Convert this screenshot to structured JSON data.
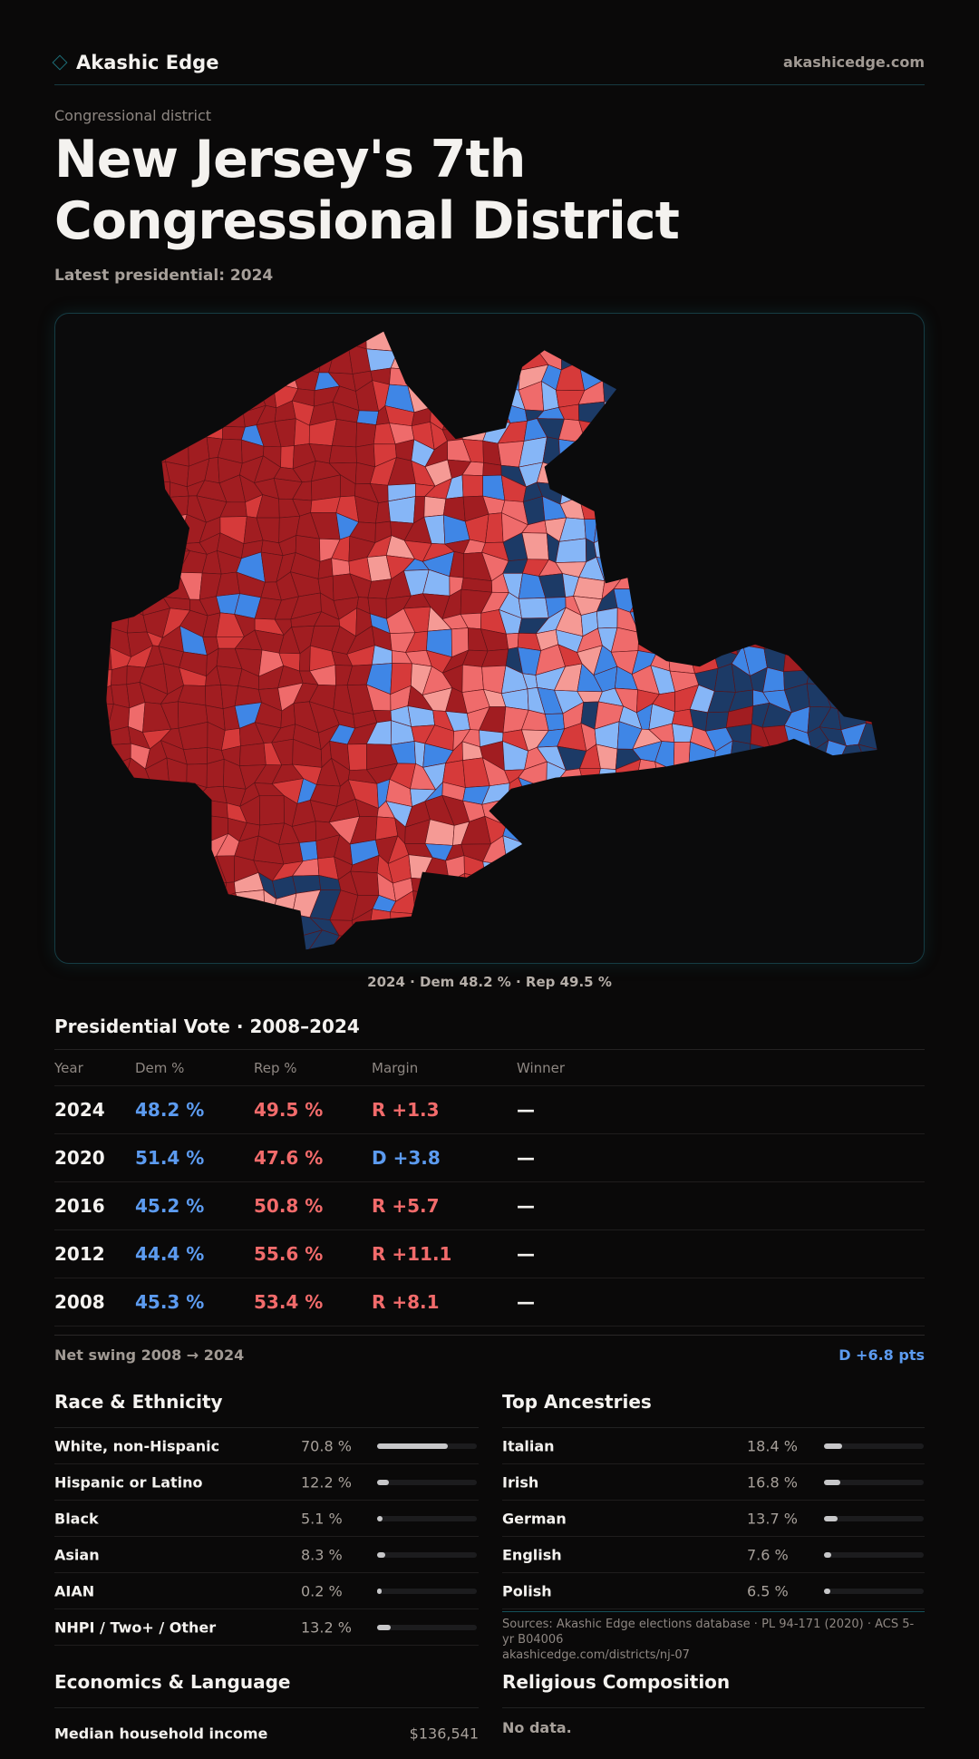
{
  "header": {
    "brand": "Akashic Edge",
    "brand_icon": "diamond-icon",
    "site": "akashicedge.com"
  },
  "kicker": "Congressional district",
  "title": "New Jersey's 7th Congressional District",
  "latest": "Latest presidential: 2024",
  "map": {
    "caption": "2024 · Dem 48.2 % · Rep 49.5 %",
    "colors": {
      "safe_r": "#a11d21",
      "lean_r": "#d63a3a",
      "tilt_r": "#ef6b6b",
      "weak_r": "#f59a95",
      "weak_d": "#86b6f7",
      "lean_d": "#3f86e6",
      "safe_d": "#1c3a66"
    }
  },
  "presidential": {
    "heading": "Presidential Vote · 2008–2024",
    "columns": [
      "Year",
      "Dem %",
      "Rep %",
      "Margin",
      "Winner"
    ],
    "rows": [
      {
        "year": "2024",
        "dem": "48.2 %",
        "rep": "49.5 %",
        "margin": "R +1.3",
        "party": "R",
        "winner": "—"
      },
      {
        "year": "2020",
        "dem": "51.4 %",
        "rep": "47.6 %",
        "margin": "D +3.8",
        "party": "D",
        "winner": "—"
      },
      {
        "year": "2016",
        "dem": "45.2 %",
        "rep": "50.8 %",
        "margin": "R +5.7",
        "party": "R",
        "winner": "—"
      },
      {
        "year": "2012",
        "dem": "44.4 %",
        "rep": "55.6 %",
        "margin": "R +11.1",
        "party": "R",
        "winner": "—"
      },
      {
        "year": "2008",
        "dem": "45.3 %",
        "rep": "53.4 %",
        "margin": "R +8.1",
        "party": "R",
        "winner": "—"
      }
    ],
    "swing_label": "Net swing 2008 → 2024",
    "swing_value": "D +6.8 pts"
  },
  "race": {
    "heading": "Race & Ethnicity",
    "rows": [
      {
        "label": "White, non-Hispanic",
        "value": "70.8 %",
        "pct": 70.8
      },
      {
        "label": "Hispanic or Latino",
        "value": "12.2 %",
        "pct": 12.2
      },
      {
        "label": "Black",
        "value": "5.1 %",
        "pct": 5.1
      },
      {
        "label": "Asian",
        "value": "8.3 %",
        "pct": 8.3
      },
      {
        "label": "AIAN",
        "value": "0.2 %",
        "pct": 0.2
      },
      {
        "label": "NHPI / Two+ / Other",
        "value": "13.2 %",
        "pct": 13.2
      }
    ]
  },
  "ancestry": {
    "heading": "Top Ancestries",
    "rows": [
      {
        "label": "Italian",
        "value": "18.4 %",
        "pct": 18.4
      },
      {
        "label": "Irish",
        "value": "16.8 %",
        "pct": 16.8
      },
      {
        "label": "German",
        "value": "13.7 %",
        "pct": 13.7
      },
      {
        "label": "English",
        "value": "7.6 %",
        "pct": 7.6
      },
      {
        "label": "Polish",
        "value": "6.5 %",
        "pct": 6.5
      }
    ]
  },
  "economics": {
    "heading": "Economics & Language",
    "rows": [
      {
        "label": "Median household income",
        "value": "$136,541"
      }
    ]
  },
  "religion": {
    "heading": "Religious Composition",
    "empty": "No data."
  },
  "footer": {
    "sources": "Sources: Akashic Edge elections database · PL 94-171 (2020) · ACS 5-yr B04006",
    "url": "akashicedge.com/districts/nj-07"
  }
}
